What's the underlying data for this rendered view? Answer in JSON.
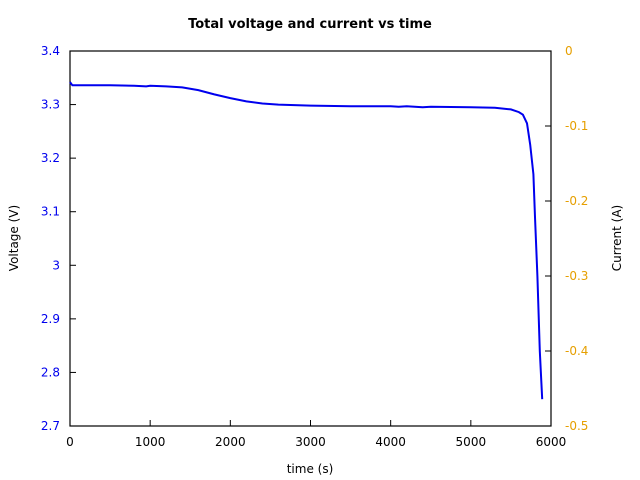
{
  "chart_data": {
    "type": "line",
    "title": "Total voltage and current vs time",
    "xlabel": "time (s)",
    "ylabel": "Voltage (V)",
    "y2label": "Current (A)",
    "xlim": [
      0,
      6000
    ],
    "ylim": [
      2.7,
      3.4
    ],
    "y2lim": [
      -0.5,
      0
    ],
    "xticks": [
      "0",
      "1000",
      "2000",
      "3000",
      "4000",
      "5000",
      "6000"
    ],
    "yticks": [
      "2.7",
      "2.8",
      "2.9",
      "3",
      "3.1",
      "3.2",
      "3.3",
      "3.4"
    ],
    "y2ticks": [
      "-0.5",
      "-0.4",
      "-0.3",
      "-0.2",
      "-0.1",
      "0"
    ],
    "grid": false,
    "colors": {
      "voltage": "#0000ee",
      "left_axis": "#0000ee",
      "right_axis": "#e69f00"
    },
    "series": [
      {
        "name": "Voltage",
        "axis": "left",
        "x": [
          0,
          30,
          200,
          500,
          800,
          950,
          1000,
          1200,
          1400,
          1600,
          1800,
          2000,
          2200,
          2400,
          2600,
          2800,
          3000,
          3500,
          4000,
          4100,
          4200,
          4300,
          4400,
          4500,
          5000,
          5300,
          5500,
          5600,
          5650,
          5700,
          5740,
          5780,
          5800,
          5830,
          5860,
          5890
        ],
        "y": [
          3.342,
          3.336,
          3.336,
          3.336,
          3.335,
          3.334,
          3.335,
          3.334,
          3.332,
          3.327,
          3.319,
          3.312,
          3.306,
          3.302,
          3.3,
          3.299,
          3.298,
          3.297,
          3.297,
          3.296,
          3.297,
          3.296,
          3.295,
          3.296,
          3.295,
          3.294,
          3.291,
          3.286,
          3.281,
          3.265,
          3.225,
          3.17,
          3.09,
          2.98,
          2.84,
          2.75
        ]
      }
    ]
  }
}
